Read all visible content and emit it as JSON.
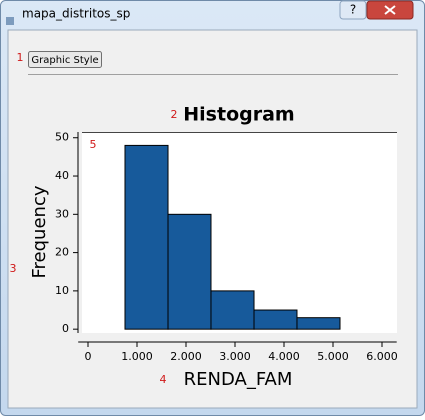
{
  "window": {
    "title": "mapa_distritos_sp",
    "help_button": "?"
  },
  "toolbar": {
    "button": "Graphic Style"
  },
  "annotations": [
    "1",
    "2",
    "3",
    "4",
    "5"
  ],
  "chart_data": {
    "type": "histogram",
    "title": "Histogram",
    "x_label": "RENDA_FAM",
    "y_label": "Frequency",
    "bins": [
      755,
      1633,
      2510,
      3388,
      4265,
      5143
    ],
    "values": [
      48,
      30,
      10,
      5,
      3
    ],
    "color": "#175a9b",
    "xlim": [
      -200,
      6300
    ],
    "ylim": [
      -1,
      51.5
    ],
    "xticks": [
      0,
      {
        "value": 1000,
        "label": "1.000"
      },
      {
        "value": 2000,
        "label": "2.000"
      },
      {
        "value": 3000,
        "label": "3.000"
      },
      {
        "value": 4000,
        "label": "4.000"
      },
      {
        "value": 5000,
        "label": "5.000"
      },
      {
        "value": 6000,
        "label": "6.000"
      }
    ],
    "yticks": [
      0,
      10,
      20,
      30,
      40,
      50
    ]
  }
}
